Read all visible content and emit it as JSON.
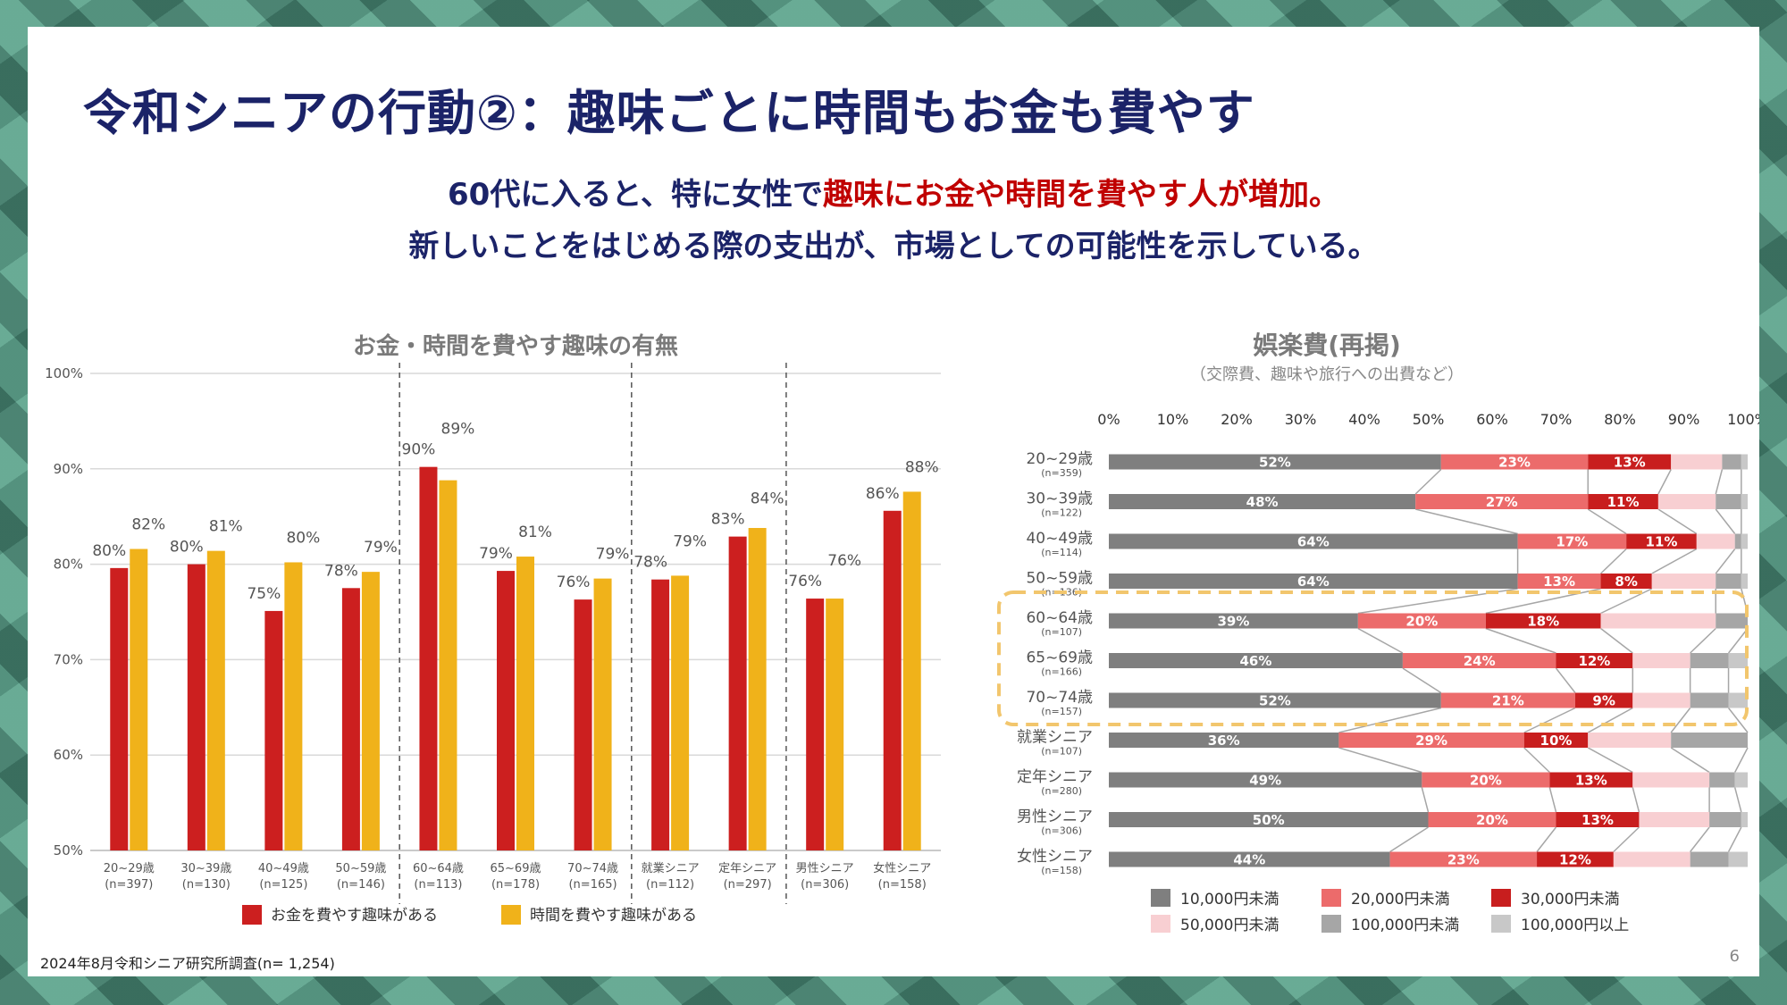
{
  "title": "令和シニアの行動②：趣味ごとに時間もお金も費やす",
  "subtitle": {
    "line1_a": "60代に入ると、特に女性で",
    "line1_b": "趣味にお金や時間を費やす人が増加。",
    "line2": "新しいことをはじめる際の支出が、市場としての可能性を示している。"
  },
  "footer_note": "2024年8月令和シニア研究所調査(n= 1,254)",
  "page_number": "6",
  "colors": {
    "title_navy": "#1b2368",
    "highlight_red": "#c00000",
    "money": "#cc1f1f",
    "time": "#f0b21a",
    "dashed_box": "#f2c66d"
  },
  "chart_data": [
    {
      "type": "bar",
      "title": "お金・時間を費やす趣味の有無",
      "ylim": [
        50,
        100
      ],
      "yticks": [
        "50%",
        "60%",
        "70%",
        "80%",
        "90%",
        "100%"
      ],
      "categories": [
        {
          "label": "20~29歳",
          "n": "(n=397)"
        },
        {
          "label": "30~39歳",
          "n": "(n=130)"
        },
        {
          "label": "40~49歳",
          "n": "(n=125)"
        },
        {
          "label": "50~59歳",
          "n": "(n=146)"
        },
        {
          "label": "60~64歳",
          "n": "(n=113)"
        },
        {
          "label": "65~69歳",
          "n": "(n=178)"
        },
        {
          "label": "70~74歳",
          "n": "(n=165)"
        },
        {
          "label": "就業シニア",
          "n": "(n=112)"
        },
        {
          "label": "定年シニア",
          "n": "(n=297)"
        },
        {
          "label": "男性シニア",
          "n": "(n=306)"
        },
        {
          "label": "女性シニア",
          "n": "(n=158)"
        }
      ],
      "series": [
        {
          "name": "お金を費やす趣味がある",
          "color": "#cc1f1f",
          "values": [
            79.6,
            80.0,
            75.1,
            77.5,
            90.2,
            79.3,
            76.3,
            78.4,
            82.9,
            76.4,
            85.6
          ],
          "labels": [
            "80%",
            "80%",
            "75%",
            "78%",
            "90%",
            "79%",
            "76%",
            "78%",
            "83%",
            "76%",
            "86%"
          ]
        },
        {
          "name": "時間を費やす趣味がある",
          "color": "#f0b21a",
          "values": [
            81.6,
            81.4,
            80.2,
            79.2,
            88.8,
            80.8,
            78.5,
            78.8,
            83.8,
            76.4,
            87.6
          ],
          "labels": [
            "82%",
            "81%",
            "80%",
            "79%",
            "89%",
            "81%",
            "79%",
            "79%",
            "84%",
            "76%",
            "88%"
          ]
        }
      ],
      "group_separators_after": [
        3,
        6,
        8
      ]
    },
    {
      "type": "bar",
      "orientation": "horizontal-stacked",
      "title": "娯楽費(再掲)",
      "subtitle": "（交際費、趣味や旅行への出費など）",
      "xlim": [
        0,
        100
      ],
      "xticks": [
        "0%",
        "10%",
        "20%",
        "30%",
        "40%",
        "50%",
        "60%",
        "70%",
        "80%",
        "90%",
        "100%"
      ],
      "categories": [
        {
          "label": "20~29歳",
          "n": "(n=359)"
        },
        {
          "label": "30~39歳",
          "n": "(n=122)"
        },
        {
          "label": "40~49歳",
          "n": "(n=114)"
        },
        {
          "label": "50~59歳",
          "n": "(n=136)"
        },
        {
          "label": "60~64歳",
          "n": "(n=107)"
        },
        {
          "label": "65~69歳",
          "n": "(n=166)"
        },
        {
          "label": "70~74歳",
          "n": "(n=157)"
        },
        {
          "label": "就業シニア",
          "n": "(n=107)"
        },
        {
          "label": "定年シニア",
          "n": "(n=280)"
        },
        {
          "label": "男性シニア",
          "n": "(n=306)"
        },
        {
          "label": "女性シニア",
          "n": "(n=158)"
        }
      ],
      "series": [
        {
          "name": "10,000円未満",
          "color": "#7f7f7f",
          "values": [
            52,
            48,
            64,
            64,
            39,
            46,
            52,
            36,
            49,
            50,
            44
          ],
          "labels": [
            "52%",
            "48%",
            "64%",
            "64%",
            "39%",
            "46%",
            "52%",
            "36%",
            "49%",
            "50%",
            "44%"
          ]
        },
        {
          "name": "20,000円未満",
          "color": "#ec6b6b",
          "values": [
            23,
            27,
            17,
            13,
            20,
            24,
            21,
            29,
            20,
            20,
            23
          ],
          "labels": [
            "23%",
            "27%",
            "17%",
            "13%",
            "20%",
            "24%",
            "21%",
            "29%",
            "20%",
            "20%",
            "23%"
          ]
        },
        {
          "name": "30,000円未満",
          "color": "#c81e1e",
          "values": [
            13,
            11,
            11,
            8,
            18,
            12,
            9,
            10,
            13,
            13,
            12
          ],
          "labels": [
            "13%",
            "11%",
            "11%",
            "8%",
            "18%",
            "12%",
            "9%",
            "10%",
            "13%",
            "13%",
            "12%"
          ]
        },
        {
          "name": "50,000円未満",
          "color": "#f8cfd2",
          "values": [
            8,
            9,
            6,
            10,
            18,
            9,
            9,
            13,
            12,
            11,
            12
          ],
          "labels": [
            "",
            "",
            "",
            "",
            "",
            "",
            "",
            "",
            "",
            "",
            ""
          ]
        },
        {
          "name": "100,000円未満",
          "color": "#a6a6a6",
          "values": [
            3,
            4,
            1,
            4,
            5,
            6,
            6,
            12,
            4,
            5,
            6
          ],
          "labels": [
            "",
            "",
            "",
            "",
            "",
            "",
            "",
            "",
            "",
            "",
            ""
          ]
        },
        {
          "name": "100,000円以上",
          "color": "#c8c8c8",
          "values": [
            1,
            1,
            1,
            1,
            0,
            3,
            3,
            0,
            2,
            1,
            3
          ],
          "labels": [
            "",
            "",
            "",
            "",
            "",
            "",
            "",
            "",
            "",
            "",
            ""
          ]
        }
      ],
      "highlight_rows": [
        "60~64歳",
        "65~69歳",
        "70~74歳"
      ]
    }
  ]
}
